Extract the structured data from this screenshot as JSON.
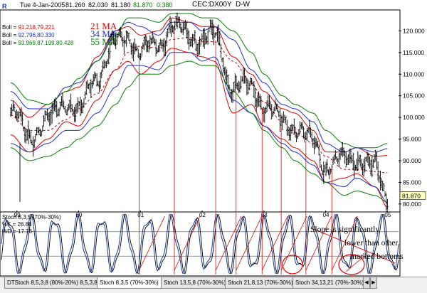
{
  "header": {
    "frame_left": "F",
    "frame_right": "R",
    "date": "Tue 4-Jan-2005",
    "open": "81.260",
    "high": "82.030",
    "low": "81.180",
    "close": "81.870",
    "change": "0.380",
    "symbol": "CEC:DX00Y",
    "period": "D-W"
  },
  "bollinger": [
    {
      "label": "Boll",
      "values": "91.218,79.221",
      "color": "#e00000"
    },
    {
      "label": "Boll",
      "values": "92.796,80.330",
      "color": "#2030d0"
    },
    {
      "label": "Boll",
      "values": "93.969,87.199,80.428",
      "color": "#008000"
    }
  ],
  "ma_labels": [
    {
      "text": "21 MA",
      "color": "#e00000"
    },
    {
      "text": "34 MA",
      "color": "#2030d0"
    },
    {
      "text": "55 MA",
      "color": "#008000"
    }
  ],
  "stoch": {
    "title": "Stoch 8,3,5 (70%-30%)",
    "k_label": "%K",
    "k_value": "26.86",
    "d_label": "%D",
    "d_value": "17.76"
  },
  "annotation": [
    "Slope is significantly",
    "lower than other",
    "marked bottoms"
  ],
  "tabs": [
    {
      "label": "DTStoch 8,5,3,8 (80%-20%) 8,5,3,8",
      "active": false
    },
    {
      "label": "Stoch 8,3,5 (70%-30%)",
      "active": true
    },
    {
      "label": "Stoch 13,5,8 (70%-30%)",
      "active": false
    },
    {
      "label": "Stoch 21,8,13 (70%-30%)",
      "active": false
    },
    {
      "label": "Stoch 34,13,21 (70%-30%)",
      "active": false
    }
  ],
  "colors": {
    "price_bar": "#000000",
    "ma21": "#e00000",
    "ma34": "#2030d0",
    "ma55": "#008000",
    "mid_band": "#c00000",
    "stoch_k": "#1a3a9a",
    "stoch_d": "#000000",
    "marker": "#e00000",
    "last_price_box": "#ffffc0"
  },
  "last_price_label": "81.870",
  "chart_data": {
    "type": "line",
    "title": "CEC:DX00Y D-W",
    "x_axis_labels": [
      "99",
      "00",
      "01",
      "02",
      "03",
      "04",
      "05"
    ],
    "y_axis_labels": [
      "80.000",
      "85.000",
      "90.000",
      "95.000",
      "100.000",
      "105.000",
      "110.000",
      "115.000",
      "120.000"
    ],
    "ylim": [
      78.5,
      124.5
    ],
    "price_series": {
      "name": "Price (weekly bars, approx close)",
      "x": [
        1998.9,
        1999.2,
        1999.5,
        1999.8,
        2000.0,
        2000.3,
        2000.6,
        2000.8,
        2001.0,
        2001.3,
        2001.5,
        2001.8,
        2002.0,
        2002.2,
        2002.5,
        2002.8,
        2003.0,
        2003.3,
        2003.5,
        2003.8,
        2004.0,
        2004.3,
        2004.5,
        2004.8,
        2005.0
      ],
      "values": [
        101,
        96,
        99,
        104,
        101,
        110,
        117,
        119,
        115,
        117,
        121,
        119,
        118,
        119,
        107,
        107,
        103,
        99,
        98,
        94,
        89,
        90,
        91,
        88,
        82
      ]
    },
    "bands": [
      {
        "name": "21 MA",
        "upper": [
          104,
          100,
          103,
          106,
          107,
          114,
          120,
          121,
          119,
          120,
          123,
          122,
          121,
          121,
          114,
          110,
          106,
          102,
          101,
          97,
          92,
          92,
          93,
          91,
          91.2
        ],
        "lower": [
          96,
          92,
          95,
          99,
          98,
          104,
          111,
          113,
          110,
          113,
          116,
          115,
          114,
          113,
          101,
          103,
          98,
          95,
          93,
          90,
          85,
          86,
          87,
          84,
          79.2
        ]
      },
      {
        "name": "34 MA",
        "upper": [
          106,
          102,
          102,
          107,
          108,
          113,
          120,
          122,
          121,
          119,
          122,
          122,
          120,
          121,
          118,
          111,
          108,
          103,
          102,
          99,
          94,
          92,
          93,
          92,
          92.8
        ],
        "lower": [
          94,
          92,
          94,
          97,
          97,
          101,
          107,
          112,
          112,
          111,
          115,
          115,
          113,
          114,
          104,
          101,
          98,
          94,
          92,
          89,
          85,
          84,
          86,
          84,
          80.3
        ]
      },
      {
        "name": "55 MA",
        "upper": [
          108,
          104,
          103,
          106,
          109,
          113,
          119,
          123,
          123,
          122,
          124,
          124,
          123,
          123,
          120,
          115,
          110,
          105,
          103,
          101,
          97,
          94,
          93,
          93,
          94.0
        ],
        "lower": [
          93,
          90,
          91,
          93,
          95,
          98,
          103,
          107,
          110,
          110,
          112,
          113,
          112,
          112,
          106,
          101,
          97,
          93,
          90,
          87,
          85,
          82,
          83,
          82,
          80.4
        ]
      }
    ],
    "middle_band": {
      "name": "55 MA mid",
      "values": [
        100.5,
        97,
        97,
        99.5,
        102,
        105.5,
        111,
        115,
        116.5,
        116,
        118,
        118.5,
        117.5,
        117.5,
        113,
        108,
        103.5,
        99,
        96.5,
        94,
        91,
        88,
        88,
        87.5,
        87.2
      ]
    },
    "marked_bottoms_x": [
      2000.98,
      2001.55,
      2002.22,
      2002.55,
      2002.97,
      2003.28,
      2003.68,
      2004.1
    ],
    "oscillator": {
      "name": "Stoch 8,3,5",
      "range": [
        0,
        100
      ],
      "levels": [
        30,
        70
      ],
      "k_last": 26.86,
      "d_last": 17.76
    },
    "xlabel": "",
    "ylabel": ""
  }
}
